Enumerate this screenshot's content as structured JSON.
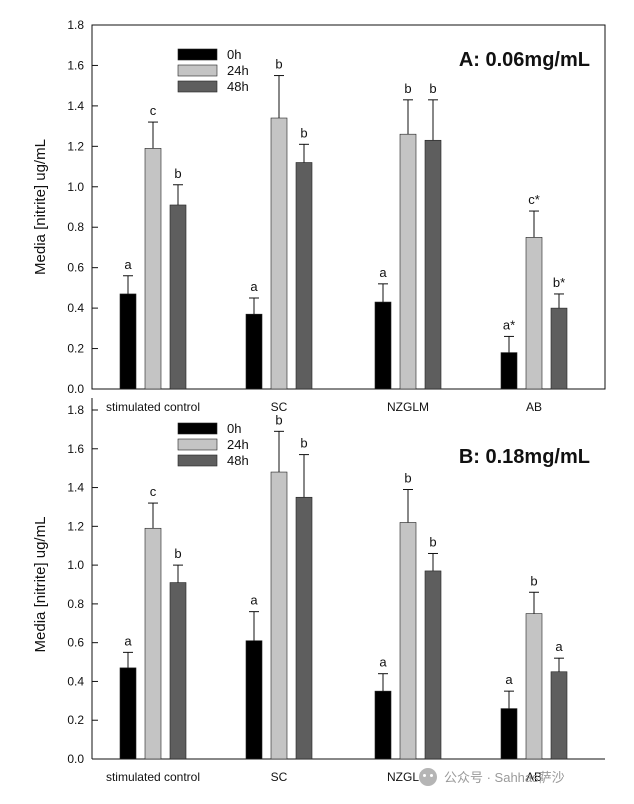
{
  "chart_data": [
    {
      "type": "bar",
      "panel_title": "A: 0.06mg/mL",
      "ylabel": "Media [nitrite] ug/mL",
      "xlabel": "",
      "ylim": [
        0,
        1.8
      ],
      "yticks": [
        "0.0",
        "0.2",
        "0.4",
        "0.6",
        "0.8",
        "1.0",
        "1.2",
        "1.4",
        "1.6",
        "1.8"
      ],
      "categories": [
        "stimulated control",
        "SC",
        "NZGLM",
        "AB"
      ],
      "legend_position": "top-left",
      "series": [
        {
          "name": "0h",
          "color": "#000000",
          "values": [
            0.47,
            0.37,
            0.43,
            0.18
          ],
          "errors": [
            0.09,
            0.08,
            0.09,
            0.08
          ],
          "labels": [
            "a",
            "a",
            "a",
            "a*"
          ]
        },
        {
          "name": "24h",
          "color": "#c4c4c4",
          "values": [
            1.19,
            1.34,
            1.26,
            0.75
          ],
          "errors": [
            0.13,
            0.21,
            0.17,
            0.13
          ],
          "labels": [
            "c",
            "b",
            "b",
            "c*"
          ]
        },
        {
          "name": "48h",
          "color": "#5e5e5e",
          "values": [
            0.91,
            1.12,
            1.23,
            0.4
          ],
          "errors": [
            0.1,
            0.09,
            0.2,
            0.07
          ],
          "labels": [
            "b",
            "b",
            "b",
            "b*"
          ]
        }
      ]
    },
    {
      "type": "bar",
      "panel_title": "B: 0.18mg/mL",
      "ylabel": "Media [nitrite] ug/mL",
      "xlabel": "",
      "ylim": [
        0,
        1.8
      ],
      "yticks": [
        "0.0",
        "0.2",
        "0.4",
        "0.6",
        "0.8",
        "1.0",
        "1.2",
        "1.4",
        "1.6",
        "1.8"
      ],
      "categories": [
        "stimulated control",
        "SC",
        "NZGLM",
        "AB"
      ],
      "legend_position": "top-left",
      "series": [
        {
          "name": "0h",
          "color": "#000000",
          "values": [
            0.47,
            0.61,
            0.35,
            0.26
          ],
          "errors": [
            0.08,
            0.15,
            0.09,
            0.09
          ],
          "labels": [
            "a",
            "a",
            "a",
            "a"
          ]
        },
        {
          "name": "24h",
          "color": "#c4c4c4",
          "values": [
            1.19,
            1.48,
            1.22,
            0.75
          ],
          "errors": [
            0.13,
            0.21,
            0.17,
            0.11
          ],
          "labels": [
            "c",
            "b",
            "b",
            "b"
          ]
        },
        {
          "name": "48h",
          "color": "#5e5e5e",
          "values": [
            0.91,
            1.35,
            0.97,
            0.45
          ],
          "errors": [
            0.09,
            0.22,
            0.09,
            0.07
          ],
          "labels": [
            "b",
            "b",
            "b",
            "a"
          ]
        }
      ]
    }
  ],
  "watermark": {
    "text": "公众号 · Sahhas萨沙"
  }
}
